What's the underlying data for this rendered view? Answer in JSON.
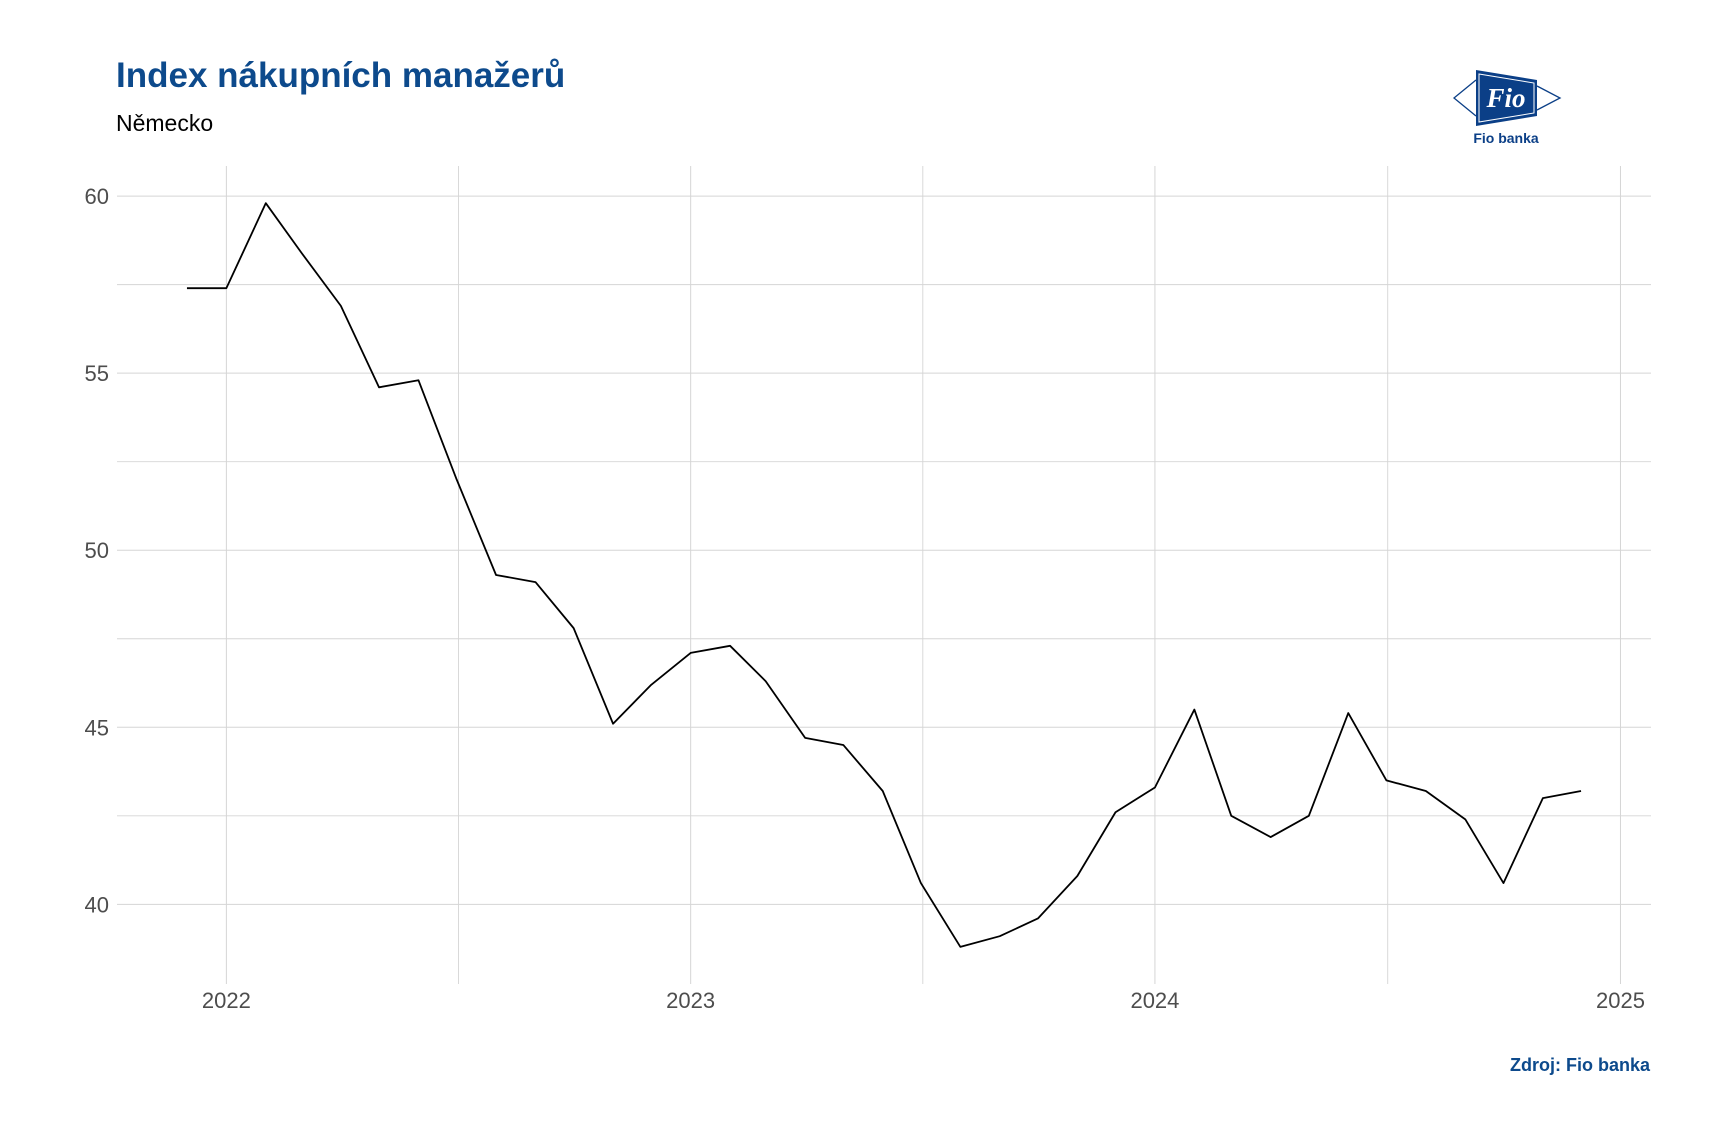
{
  "colors": {
    "title": "#0d4a8c",
    "subtitle": "#000000",
    "line": "#000000",
    "grid": "#d5d5d5",
    "axis_text": "#4d4d4d",
    "logo": "#0b3f87"
  },
  "logo": {
    "mark_text": "Fio",
    "caption": "Fio banka"
  },
  "chart_data": {
    "type": "line",
    "title": "Index nákupních manažerů",
    "subtitle": "Německo",
    "caption": "Zdroj: Fio banka",
    "xlabel": "",
    "ylabel": "",
    "x": [
      "2021-12-01",
      "2022-01-01",
      "2022-02-01",
      "2022-03-01",
      "2022-04-01",
      "2022-05-01",
      "2022-06-01",
      "2022-07-01",
      "2022-08-01",
      "2022-09-01",
      "2022-10-01",
      "2022-11-01",
      "2022-12-01",
      "2023-01-01",
      "2023-02-01",
      "2023-03-01",
      "2023-04-01",
      "2023-05-01",
      "2023-06-01",
      "2023-07-01",
      "2023-08-01",
      "2023-09-01",
      "2023-10-01",
      "2023-11-01",
      "2023-12-01",
      "2024-01-01",
      "2024-02-01",
      "2024-03-01",
      "2024-04-01",
      "2024-05-01",
      "2024-06-01",
      "2024-07-01",
      "2024-08-01",
      "2024-09-01",
      "2024-10-01",
      "2024-11-01",
      "2024-12-01"
    ],
    "series": [
      {
        "values": [
          57.4,
          57.4,
          59.8,
          58.4,
          56.9,
          54.6,
          54.8,
          52.0,
          49.3,
          49.1,
          47.8,
          45.1,
          46.2,
          47.1,
          47.3,
          46.3,
          44.7,
          44.5,
          43.2,
          40.6,
          38.8,
          39.1,
          39.6,
          40.8,
          42.6,
          43.3,
          45.5,
          42.5,
          41.9,
          42.5,
          45.4,
          43.5,
          43.2,
          42.4,
          40.6,
          43.0,
          43.2
        ]
      }
    ],
    "x_ticks": [
      "2022",
      "2023",
      "2024",
      "2025"
    ],
    "y_ticks": [
      40,
      45,
      50,
      55,
      60
    ],
    "xlim": [
      "2021-10-07",
      "2025-01-25"
    ],
    "ylim": [
      37.75,
      60.85
    ],
    "grid": true,
    "legend": "none"
  }
}
